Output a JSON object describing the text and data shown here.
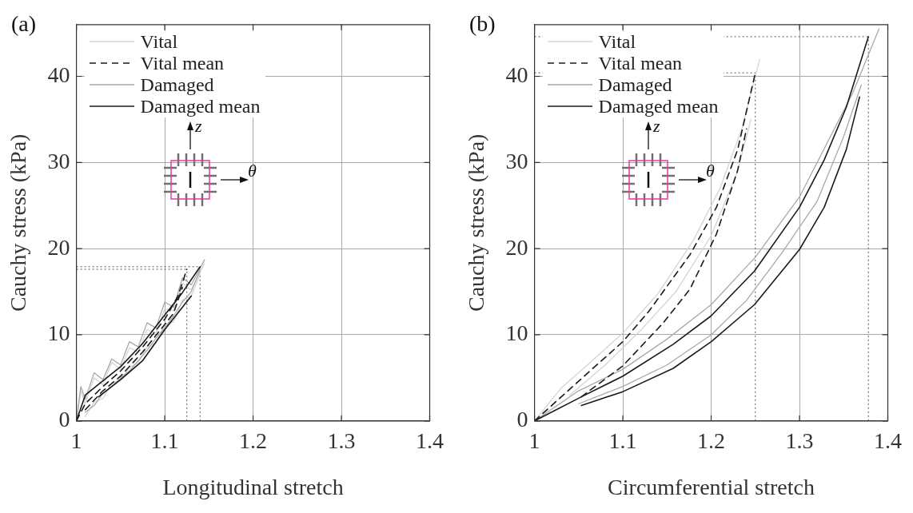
{
  "chart_data": [
    {
      "type": "line",
      "title": "(a)",
      "xlabel": "Longitudinal stretch",
      "ylabel": "Cauchy stress (kPa)",
      "xlim": [
        1,
        1.4
      ],
      "ylim": [
        0,
        46
      ],
      "xticks": [
        1,
        1.1,
        1.2,
        1.3,
        1.4
      ],
      "yticks": [
        0,
        10,
        20,
        30,
        40
      ],
      "grid": true,
      "legend": "top left",
      "annotations": [
        "z",
        "θ"
      ],
      "ref_lines": [
        {
          "axis": "y",
          "value": 17.6,
          "color": "#555555",
          "line_style": "dotted"
        },
        {
          "axis": "y",
          "value": 17.9,
          "color": "#555555",
          "line_style": "dotted"
        },
        {
          "axis": "x",
          "value": 1.125,
          "color": "#555555",
          "line_style": "dotted"
        },
        {
          "axis": "x",
          "value": 1.14,
          "color": "#555555",
          "line_style": "dotted"
        }
      ],
      "series": [
        {
          "name": "Vital",
          "color": "#d4d4d4",
          "line_style": "solid",
          "x": [
            1,
            1.005,
            1.01,
            1.02,
            1.03,
            1.04,
            1.05,
            1.06,
            1.07,
            1.08,
            1.09,
            1.1,
            1.11,
            1.12,
            1.13,
            1.145
          ],
          "values": [
            0,
            3.5,
            2,
            5,
            4.2,
            6.8,
            6,
            8.5,
            8,
            10.6,
            10.2,
            13,
            12.8,
            16,
            15.2,
            18.3
          ]
        },
        {
          "color": "#d4d4d4",
          "line_style": "solid",
          "x": [
            1.01,
            1.02,
            1.03,
            1.04,
            1.05,
            1.06,
            1.07,
            1.08,
            1.09,
            1.1,
            1.11,
            1.12,
            1.13,
            1.14
          ],
          "values": [
            0.5,
            2.2,
            2.6,
            4.4,
            4.8,
            6.2,
            6.8,
            8.6,
            9,
            11.2,
            11.5,
            14,
            14.5,
            17
          ]
        },
        {
          "name": "Vital mean",
          "color": "#1a1a1a",
          "line_style": "dashed",
          "x": [
            1,
            1.01,
            1.03,
            1.05,
            1.075,
            1.1,
            1.115,
            1.125
          ],
          "values": [
            0,
            2,
            4,
            5.8,
            8.6,
            11.8,
            14.5,
            17.6
          ]
        },
        {
          "color": "#1a1a1a",
          "line_style": "dashed",
          "x": [
            1.01,
            1.03,
            1.05,
            1.075,
            1.1,
            1.11,
            1.12
          ],
          "values": [
            1.3,
            3.5,
            5.2,
            8,
            11.2,
            12.5,
            15.5
          ]
        },
        {
          "name": "Damaged",
          "color": "#a8a8a8",
          "line_style": "solid",
          "x": [
            1,
            1.005,
            1.01,
            1.02,
            1.03,
            1.04,
            1.05,
            1.06,
            1.07,
            1.08,
            1.09,
            1.1,
            1.11,
            1.12,
            1.13,
            1.145
          ],
          "values": [
            0,
            4,
            2.5,
            5.6,
            4.8,
            7.2,
            6.5,
            9.2,
            8.6,
            11.4,
            10.8,
            13.8,
            13.2,
            16.6,
            15.8,
            18.7
          ]
        },
        {
          "color": "#a8a8a8",
          "line_style": "solid",
          "x": [
            1.01,
            1.02,
            1.03,
            1.04,
            1.05,
            1.06,
            1.07,
            1.08,
            1.09,
            1.1,
            1.11,
            1.12,
            1.13,
            1.14
          ],
          "values": [
            1,
            1.8,
            3.2,
            4,
            5,
            5.8,
            7,
            8.2,
            9.6,
            10.8,
            12.2,
            13.8,
            15,
            17.5
          ]
        },
        {
          "name": "Damaged mean",
          "color": "#1a1a1a",
          "line_style": "solid",
          "x": [
            1,
            1.01,
            1.05,
            1.075,
            1.1,
            1.12,
            1.14
          ],
          "values": [
            0,
            3,
            6.3,
            9,
            12.3,
            14.9,
            17.9
          ]
        },
        {
          "color": "#1a1a1a",
          "line_style": "solid",
          "x": [
            1.025,
            1.05,
            1.075,
            1.1,
            1.13
          ],
          "values": [
            2.8,
            4.8,
            7,
            10.6,
            14.5
          ]
        }
      ]
    },
    {
      "type": "line",
      "title": "(b)",
      "xlabel": "Circumferential stretch",
      "ylabel": "Cauchy stress (kPa)",
      "xlim": [
        1,
        1.4
      ],
      "ylim": [
        0,
        46
      ],
      "xticks": [
        1,
        1.1,
        1.2,
        1.3,
        1.4
      ],
      "yticks": [
        0,
        10,
        20,
        30,
        40
      ],
      "grid": true,
      "legend": "top left",
      "annotations": [
        "z",
        "θ"
      ],
      "ref_lines": [
        {
          "axis": "y",
          "value": 40.4,
          "color": "#555555",
          "line_style": "dotted"
        },
        {
          "axis": "y",
          "value": 44.6,
          "color": "#555555",
          "line_style": "dotted"
        },
        {
          "axis": "x",
          "value": 1.25,
          "color": "#555555",
          "line_style": "dotted"
        },
        {
          "axis": "x",
          "value": 1.378,
          "color": "#555555",
          "line_style": "dotted"
        }
      ],
      "series": [
        {
          "name": "Vital",
          "color": "#d4d4d4",
          "line_style": "solid",
          "x": [
            1,
            1.03,
            1.06,
            1.1,
            1.14,
            1.18,
            1.21,
            1.235,
            1.255
          ],
          "values": [
            0,
            3.8,
            6.5,
            10.2,
            14.8,
            21,
            27,
            34,
            42
          ]
        },
        {
          "color": "#d4d4d4",
          "line_style": "solid",
          "x": [
            1.04,
            1.08,
            1.12,
            1.16,
            1.2,
            1.23,
            1.245
          ],
          "values": [
            3,
            6.5,
            10.5,
            15,
            21.5,
            29,
            35
          ]
        },
        {
          "name": "Vital mean",
          "color": "#1a1a1a",
          "line_style": "dashed",
          "x": [
            1,
            1.053,
            1.1,
            1.13,
            1.176,
            1.206,
            1.23,
            1.25
          ],
          "values": [
            0,
            4.9,
            9.2,
            12.8,
            19.3,
            24.8,
            31.5,
            40.4
          ]
        },
        {
          "color": "#1a1a1a",
          "line_style": "dashed",
          "x": [
            1.053,
            1.1,
            1.145,
            1.176,
            1.206,
            1.23,
            1.24
          ],
          "values": [
            2.8,
            6.4,
            11.3,
            15.3,
            21.7,
            29.1,
            33.9
          ]
        },
        {
          "name": "Damaged",
          "color": "#a8a8a8",
          "line_style": "solid",
          "x": [
            1,
            1.05,
            1.1,
            1.15,
            1.2,
            1.25,
            1.3,
            1.33,
            1.36,
            1.39
          ],
          "values": [
            0,
            3.5,
            6,
            9.5,
            13.5,
            19,
            26,
            32,
            38,
            45.5
          ]
        },
        {
          "color": "#a8a8a8",
          "line_style": "solid",
          "x": [
            1.05,
            1.1,
            1.15,
            1.2,
            1.24,
            1.28,
            1.32,
            1.35,
            1.37
          ],
          "values": [
            2,
            4,
            6.5,
            10,
            14,
            19.5,
            25.5,
            33,
            39
          ]
        },
        {
          "name": "Damaged mean",
          "color": "#1a1a1a",
          "line_style": "solid",
          "x": [
            1,
            1.053,
            1.1,
            1.157,
            1.2,
            1.249,
            1.3,
            1.328,
            1.353,
            1.378
          ],
          "values": [
            0,
            2.8,
            5.2,
            8.9,
            12.2,
            17.4,
            24.8,
            30.3,
            36.4,
            44.6
          ]
        },
        {
          "color": "#1a1a1a",
          "line_style": "solid",
          "x": [
            1.053,
            1.1,
            1.157,
            1.2,
            1.249,
            1.3,
            1.328,
            1.353,
            1.368
          ],
          "values": [
            1.8,
            3.4,
            6.1,
            9.2,
            13.5,
            19.9,
            24.8,
            31.5,
            37.6
          ]
        }
      ]
    }
  ]
}
